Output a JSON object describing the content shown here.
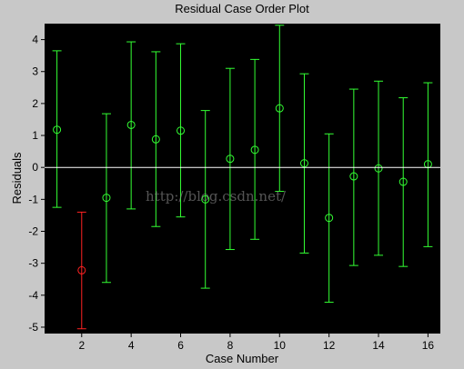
{
  "chart_data": {
    "type": "scatter",
    "title": "Residual Case Order Plot",
    "xlabel": "Case Number",
    "ylabel": "Residuals",
    "xlim": [
      0.5,
      16.5
    ],
    "ylim": [
      -5.2,
      4.5
    ],
    "xticks": [
      2,
      4,
      6,
      8,
      10,
      12,
      14,
      16
    ],
    "yticks": [
      -5,
      -4,
      -3,
      -2,
      -1,
      0,
      1,
      2,
      3,
      4
    ],
    "grid": false,
    "reference_line": 0,
    "points": [
      {
        "x": 1,
        "y": 1.18,
        "low": -1.25,
        "high": 3.65,
        "outlier": false
      },
      {
        "x": 2,
        "y": -3.22,
        "low": -5.05,
        "high": -1.4,
        "outlier": true
      },
      {
        "x": 3,
        "y": -0.95,
        "low": -3.6,
        "high": 1.68,
        "outlier": false
      },
      {
        "x": 4,
        "y": 1.33,
        "low": -1.3,
        "high": 3.93,
        "outlier": false
      },
      {
        "x": 5,
        "y": 0.88,
        "low": -1.85,
        "high": 3.62,
        "outlier": false
      },
      {
        "x": 6,
        "y": 1.15,
        "low": -1.55,
        "high": 3.87,
        "outlier": false
      },
      {
        "x": 7,
        "y": -1.0,
        "low": -3.78,
        "high": 1.78,
        "outlier": false
      },
      {
        "x": 8,
        "y": 0.27,
        "low": -2.57,
        "high": 3.1,
        "outlier": false
      },
      {
        "x": 9,
        "y": 0.55,
        "low": -2.25,
        "high": 3.38,
        "outlier": false
      },
      {
        "x": 10,
        "y": 1.85,
        "low": -0.75,
        "high": 4.45,
        "outlier": false
      },
      {
        "x": 11,
        "y": 0.13,
        "low": -2.68,
        "high": 2.93,
        "outlier": false
      },
      {
        "x": 12,
        "y": -1.58,
        "low": -4.22,
        "high": 1.05,
        "outlier": false
      },
      {
        "x": 13,
        "y": -0.28,
        "low": -3.07,
        "high": 2.45,
        "outlier": false
      },
      {
        "x": 14,
        "y": -0.03,
        "low": -2.75,
        "high": 2.7,
        "outlier": false
      },
      {
        "x": 15,
        "y": -0.45,
        "low": -3.1,
        "high": 2.18,
        "outlier": false
      },
      {
        "x": 16,
        "y": 0.1,
        "low": -2.48,
        "high": 2.65,
        "outlier": false
      }
    ],
    "colors": {
      "background": "#000000",
      "figure": "#c8c8c8",
      "normal": "#33ff33",
      "outlier": "#ff2222",
      "zero_line": "#ffffff"
    }
  },
  "watermark": "http://blog.csdn.net/"
}
